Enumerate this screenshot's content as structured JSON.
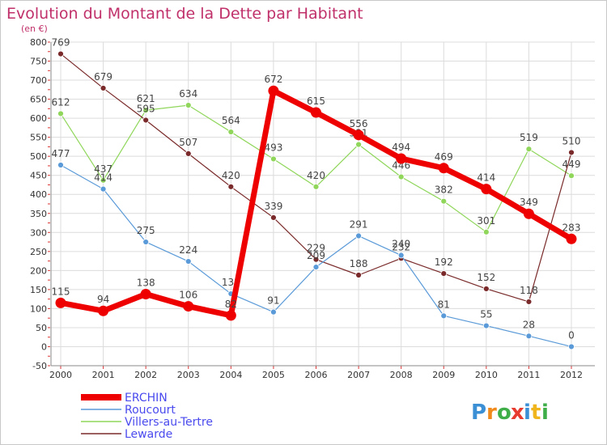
{
  "chart_data": {
    "type": "line",
    "title": "Evolution du Montant de la Dette par Habitant",
    "subtitle": "(en €)",
    "x": [
      "2000",
      "2001",
      "2002",
      "2003",
      "2004",
      "2005",
      "2006",
      "2007",
      "2008",
      "2009",
      "2010",
      "2011",
      "2012"
    ],
    "ylim": [
      -50,
      800
    ],
    "yticks": [
      -50,
      0,
      50,
      100,
      150,
      200,
      250,
      300,
      350,
      400,
      450,
      500,
      550,
      600,
      650,
      700,
      750,
      800
    ],
    "grid": true,
    "legend_position": "bottom-left",
    "series": [
      {
        "name": "Villers-au-Tertre",
        "color": "#8fd65a",
        "width": 1.2,
        "values": [
          612,
          437,
          621,
          634,
          564,
          493,
          420,
          531,
          446,
          382,
          301,
          519,
          449
        ]
      },
      {
        "name": "Lewarde",
        "color": "#7a2a2a",
        "width": 1.2,
        "values": [
          769,
          679,
          595,
          507,
          420,
          339,
          229,
          188,
          232,
          192,
          152,
          118,
          510
        ]
      },
      {
        "name": "Roucourt",
        "color": "#5a9ad8",
        "width": 1.2,
        "values": [
          477,
          414,
          275,
          224,
          139,
          91,
          209,
          291,
          240,
          81,
          55,
          28,
          0
        ]
      },
      {
        "name": "ERCHIN",
        "color": "#ee0000",
        "width": 7,
        "values": [
          115,
          94,
          138,
          106,
          82,
          672,
          615,
          556,
          494,
          469,
          414,
          349,
          283
        ]
      }
    ],
    "legend_order": [
      "ERCHIN",
      "Roucourt",
      "Villers-au-Tertre",
      "Lewarde"
    ]
  },
  "logo": {
    "text": "Proxiti"
  }
}
